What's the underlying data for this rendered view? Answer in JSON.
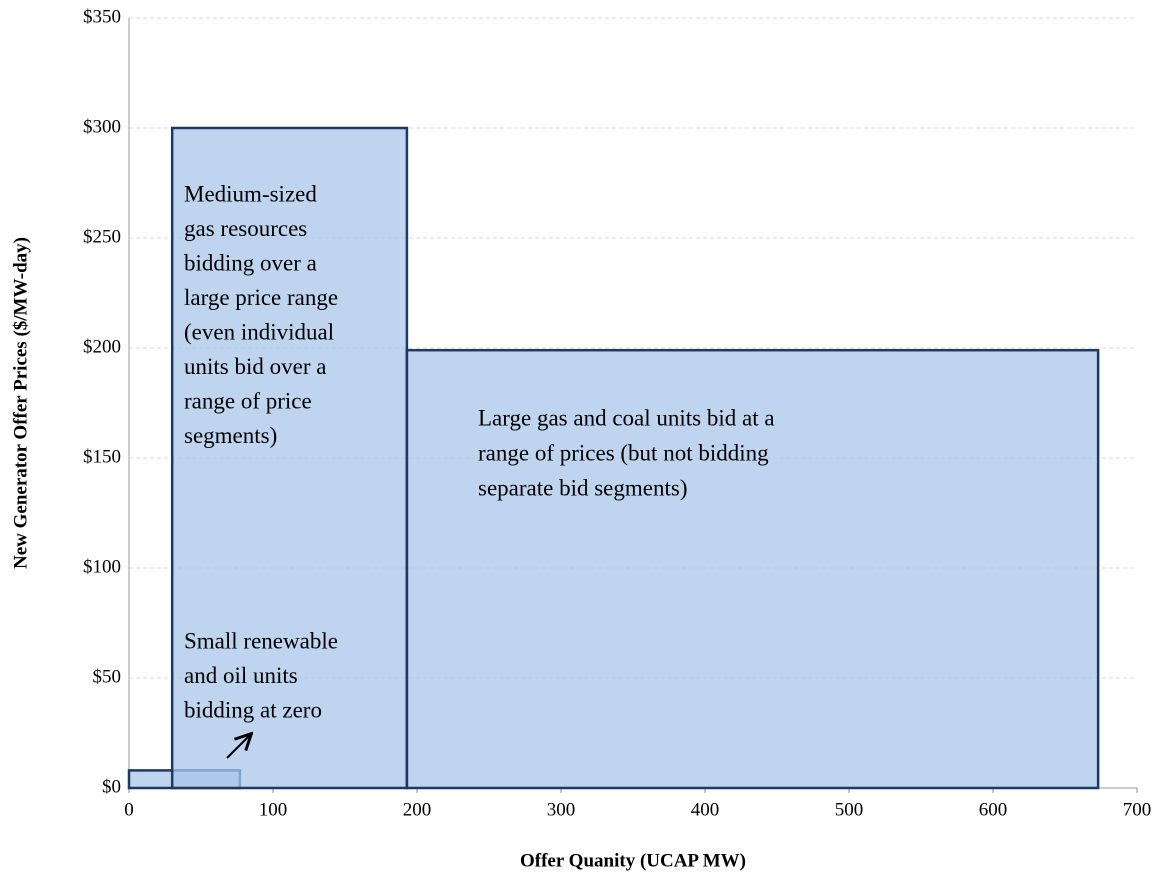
{
  "chart_data": {
    "type": "bar",
    "x_start": [
      0,
      30,
      193
    ],
    "x_end": [
      77,
      193,
      673
    ],
    "values": [
      8,
      300,
      199
    ],
    "color": "#a9c6ea",
    "edge_color": "#1f3864",
    "xlim": [
      0,
      700
    ],
    "xticks": [
      0,
      100,
      200,
      300,
      400,
      500,
      600,
      700
    ],
    "ylim": [
      0,
      350
    ],
    "yticks": [
      {
        "value": 0,
        "label": "$0"
      },
      {
        "value": 50,
        "label": "$50"
      },
      {
        "value": 100,
        "label": "$100"
      },
      {
        "value": 150,
        "label": "$150"
      },
      {
        "value": 200,
        "label": "$200"
      },
      {
        "value": 250,
        "label": "$250"
      },
      {
        "value": 300,
        "label": "$300"
      },
      {
        "value": 350,
        "label": "$350"
      }
    ],
    "grid": true,
    "xlabel": "Offer Quanity (UCAP MW)",
    "ylabel": "New Generator Offer Prices ($/MW-day)",
    "annotations": [
      {
        "lines": [
          "Medium-sized",
          "gas resources",
          "bidding over a",
          "large price range",
          "(even individual",
          "units bid over a",
          "range of price",
          "segments)"
        ]
      },
      {
        "lines": [
          "Large gas and coal units bid at a",
          "range of prices (but not bidding",
          "separate bid segments)"
        ]
      },
      {
        "lines": [
          "Small renewable",
          "and oil units",
          "bidding at zero"
        ]
      }
    ]
  }
}
